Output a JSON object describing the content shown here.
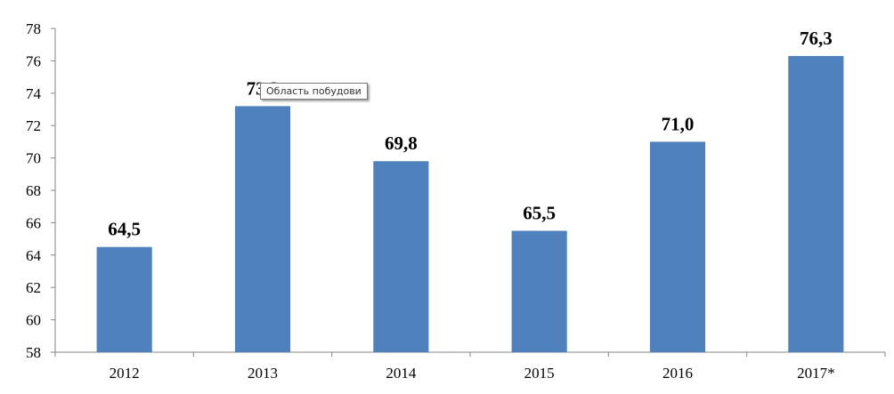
{
  "chart_data": {
    "type": "bar",
    "categories": [
      "2012",
      "2013",
      "2014",
      "2015",
      "2016",
      "2017*"
    ],
    "values": [
      64.5,
      73.2,
      69.8,
      65.5,
      71.0,
      76.3
    ],
    "value_labels": [
      "64,5",
      "73,2",
      "69,8",
      "65,5",
      "71,0",
      "76,3"
    ],
    "ylim": [
      58,
      78
    ],
    "yticks": [
      58,
      60,
      62,
      64,
      66,
      68,
      70,
      72,
      74,
      76,
      78
    ],
    "bar_color": "#4F81BD",
    "grid": false,
    "legend": "none"
  },
  "tooltip": {
    "text": "Область побудови"
  }
}
